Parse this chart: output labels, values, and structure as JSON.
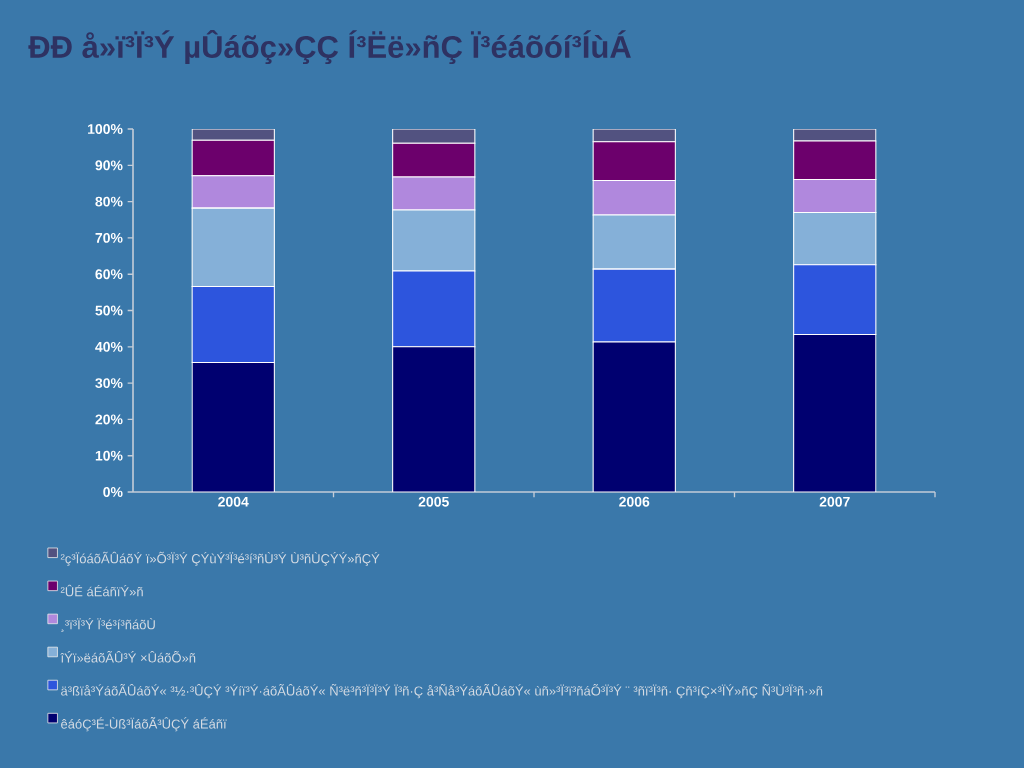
{
  "chart_data": {
    "type": "bar",
    "stacked": true,
    "title": "ÐÐ å»ï³Ï³Ý µÛáõç»ÇÇ Í³Ëë»ñÇ Ï³éáõóí³ÍùÁ",
    "categories": [
      "2004",
      "2005",
      "2006",
      "2007"
    ],
    "series": [
      {
        "name": "êáóÇ³É-Ùß³ÏáõÃ³ÛÇÝ áÉáñï",
        "color": "#000070",
        "values": [
          35.7,
          40.0,
          41.3,
          43.4
        ]
      },
      {
        "name": "ä³ßïå³ÝáõÃÛáõÝ« ³½·³ÛÇÝ ³Ýíï³Ý·áõÃÛáõÝ« Ñ³ë³ñ³Ï³Ï³Ý Ï³ñ·Ç å³Ñå³ÝáõÃÛáõÝ« ùñ»³Ï³ï³ñáÕ³Ï³Ý ¨ ³ñï³Ï³ñ· Çñ³íÇ×³ÏÝ»ñÇ Ñ³Ù³Ï³ñ·»ñ",
        "color": "#2d55dd",
        "values": [
          20.9,
          20.9,
          20.1,
          19.2
        ]
      },
      {
        "name": "îÝï»ëáõÃÛ³Ý ×ÛáõÕ»ñ",
        "color": "#85b0d8",
        "values": [
          21.6,
          16.8,
          14.9,
          14.4
        ]
      },
      {
        "name": "¸³ï³Ï³Ý Ï³é³í³ñáõÙ",
        "color": "#b088dd",
        "values": [
          8.9,
          9.1,
          9.5,
          9.1
        ]
      },
      {
        "name": "²ÛÉ áÉáñïÝ»ñ",
        "color": "#6c006c",
        "values": [
          9.8,
          9.3,
          10.7,
          10.6
        ]
      },
      {
        "name": "²ç³ÏóáõÃÛáõÝ ï»Õ³Ï³Ý ÇÝùÝ³Ï³é³í³ñÙ³Ý Ù³ñÙÇÝÝ»ñÇÝ",
        "color": "#525280",
        "values": [
          3.1,
          3.9,
          3.5,
          3.3
        ]
      }
    ],
    "ylim": [
      0,
      100
    ],
    "yticks": [
      {
        "value": 0,
        "label": "0%"
      },
      {
        "value": 10,
        "label": "10%"
      },
      {
        "value": 20,
        "label": "20%"
      },
      {
        "value": 30,
        "label": "30%"
      },
      {
        "value": 40,
        "label": "40%"
      },
      {
        "value": 50,
        "label": "50%"
      },
      {
        "value": 60,
        "label": "60%"
      },
      {
        "value": 70,
        "label": "70%"
      },
      {
        "value": 80,
        "label": "80%"
      },
      {
        "value": 90,
        "label": "90%"
      },
      {
        "value": 100,
        "label": "100%"
      }
    ],
    "legend": "bottom"
  }
}
